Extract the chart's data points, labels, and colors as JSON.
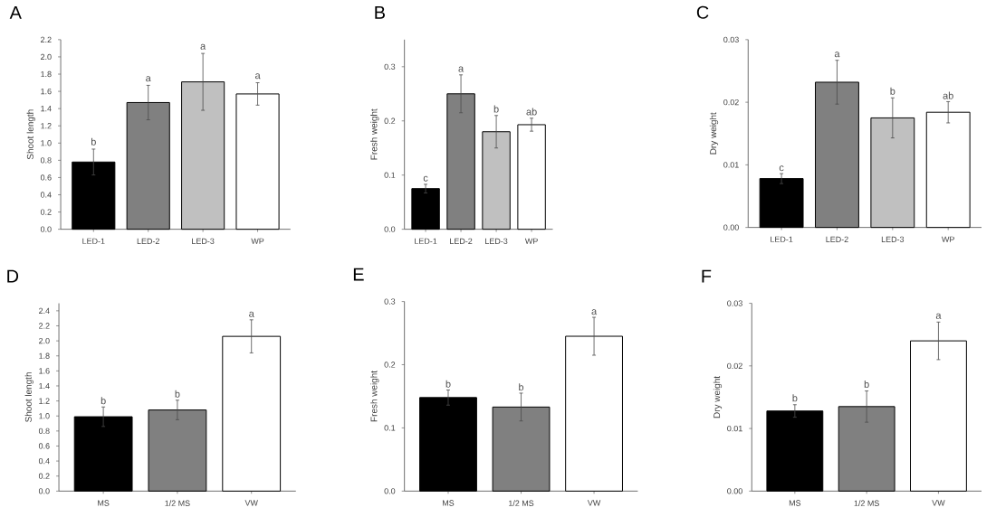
{
  "chart_data": [
    {
      "type": "bar",
      "title": "A",
      "ylabel": "Shoot length",
      "categories": [
        "LED-1",
        "LED-2",
        "LED-3",
        "WP"
      ],
      "values": [
        0.78,
        1.47,
        1.71,
        1.57
      ],
      "errors": [
        0.15,
        0.2,
        0.33,
        0.13
      ],
      "colors": [
        "#000000",
        "#808080",
        "#c0c0c0",
        "#ffffff"
      ],
      "ylim": [
        0,
        2.2
      ],
      "yticks": [
        {
          "value": 0,
          "label": "0.0"
        },
        0.2,
        0.4,
        0.6,
        0.8,
        {
          "value": 1,
          "label": "1.0"
        },
        1.2,
        1.4,
        1.6,
        1.8,
        {
          "value": 2,
          "label": "2.0"
        },
        2.2
      ],
      "annotations": [
        {
          "text": "b",
          "x": "LED-1",
          "y": 0.96
        },
        {
          "text": "a",
          "x": "LED-2",
          "y": 1.7
        },
        {
          "text": "a",
          "x": "LED-3",
          "y": 2.07
        },
        {
          "text": "a",
          "x": "WP",
          "y": 1.73
        }
      ]
    },
    {
      "type": "bar",
      "title": "B",
      "ylabel": "Fresh weight",
      "categories": [
        "LED-1",
        "LED-2",
        "LED-3",
        "WP"
      ],
      "values": [
        0.075,
        0.25,
        0.18,
        0.193
      ],
      "errors": [
        0.008,
        0.035,
        0.03,
        0.012
      ],
      "colors": [
        "#000000",
        "#808080",
        "#c0c0c0",
        "#ffffff"
      ],
      "ylim": [
        0,
        0.35
      ],
      "yticks": [
        {
          "value": 0,
          "label": "0.0"
        },
        0.1,
        0.2,
        0.3
      ],
      "annotations": [
        {
          "text": "c",
          "x": "LED-1",
          "y": 0.086
        },
        {
          "text": "a",
          "x": "LED-2",
          "y": 0.288
        },
        {
          "text": "b",
          "x": "LED-3",
          "y": 0.213
        },
        {
          "text": "ab",
          "x": "WP",
          "y": 0.208
        }
      ]
    },
    {
      "type": "bar",
      "title": "C",
      "ylabel": "Dry weight",
      "categories": [
        "LED-1",
        "LED-2",
        "LED-3",
        "WP"
      ],
      "values": [
        0.0078,
        0.0232,
        0.0175,
        0.0184
      ],
      "errors": [
        0.0008,
        0.0035,
        0.0032,
        0.0017
      ],
      "colors": [
        "#000000",
        "#808080",
        "#c0c0c0",
        "#ffffff"
      ],
      "ylim": [
        0,
        0.03
      ],
      "yticks": [
        {
          "value": 0,
          "label": "0.00"
        },
        0.01,
        0.02,
        0.03
      ],
      "annotations": [
        {
          "text": "c",
          "x": "LED-1",
          "y": 0.0088
        },
        {
          "text": "a",
          "x": "LED-2",
          "y": 0.027
        },
        {
          "text": "b",
          "x": "LED-3",
          "y": 0.021
        },
        {
          "text": "ab",
          "x": "WP",
          "y": 0.0203
        }
      ]
    },
    {
      "type": "bar",
      "title": "D",
      "ylabel": "Shoot length",
      "categories": [
        "MS",
        "1/2 MS",
        "VW"
      ],
      "values": [
        0.99,
        1.08,
        2.06
      ],
      "errors": [
        0.13,
        0.13,
        0.22
      ],
      "colors": [
        "#000000",
        "#808080",
        "#ffffff"
      ],
      "ylim": [
        0,
        2.5
      ],
      "yticks": [
        {
          "value": 0,
          "label": "0.0"
        },
        0.2,
        0.4,
        0.6,
        0.8,
        {
          "value": 1,
          "label": "1.0"
        },
        1.2,
        1.4,
        1.6,
        1.8,
        {
          "value": 2,
          "label": "2.0"
        },
        2.2,
        2.4
      ],
      "annotations": [
        {
          "text": "b",
          "x": "MS",
          "y": 1.14
        },
        {
          "text": "b",
          "x": "1/2 MS",
          "y": 1.23
        },
        {
          "text": "a",
          "x": "VW",
          "y": 2.3
        }
      ]
    },
    {
      "type": "bar",
      "title": "E",
      "ylabel": "Fresh weight",
      "categories": [
        "MS",
        "1/2 MS",
        "VW"
      ],
      "values": [
        0.148,
        0.133,
        0.245
      ],
      "errors": [
        0.012,
        0.022,
        0.03
      ],
      "colors": [
        "#000000",
        "#808080",
        "#ffffff"
      ],
      "ylim": [
        0,
        0.3
      ],
      "yticks": [
        {
          "value": 0,
          "label": "0.0"
        },
        0.1,
        0.2,
        0.3
      ],
      "annotations": [
        {
          "text": "b",
          "x": "MS",
          "y": 0.162
        },
        {
          "text": "b",
          "x": "1/2 MS",
          "y": 0.157
        },
        {
          "text": "a",
          "x": "VW",
          "y": 0.277
        }
      ]
    },
    {
      "type": "bar",
      "title": "F",
      "ylabel": "Dry weight",
      "categories": [
        "MS",
        "1/2 MS",
        "VW"
      ],
      "values": [
        0.0128,
        0.0135,
        0.024
      ],
      "errors": [
        0.001,
        0.0025,
        0.003
      ],
      "colors": [
        "#000000",
        "#808080",
        "#ffffff"
      ],
      "ylim": [
        0,
        0.03
      ],
      "yticks": [
        {
          "value": 0,
          "label": "0.00"
        },
        0.01,
        0.02,
        0.03
      ],
      "annotations": [
        {
          "text": "b",
          "x": "MS",
          "y": 0.0141
        },
        {
          "text": "b",
          "x": "1/2 MS",
          "y": 0.0163
        },
        {
          "text": "a",
          "x": "VW",
          "y": 0.0273
        }
      ]
    }
  ]
}
